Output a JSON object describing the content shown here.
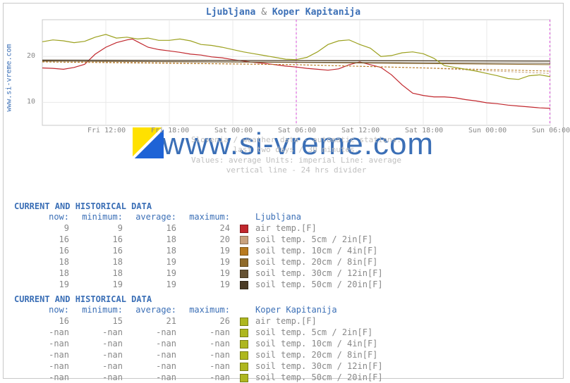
{
  "source_label": "www.si-vreme.com",
  "title_a": "Ljubljana",
  "title_amp": "&",
  "title_b": "Koper Kapitanija",
  "watermark": "www.si-vreme.com",
  "caption_lines": [
    "Slovenia / weather data - automatic stations.",
    "last two days / 30 minutes.",
    "Values: average  Units: imperial  Line: average",
    "vertical line - 24 hrs  divider"
  ],
  "chart": {
    "type": "line",
    "background_color": "#ffffff",
    "border_color": "#c8c8c8",
    "grid_color": "#e8e8e8",
    "gridline_y_values": [
      10,
      20
    ],
    "ylim": [
      5,
      28
    ],
    "y_ticks": [
      10,
      20
    ],
    "y_tick_color": "#888888",
    "y_tick_fontsize": 10,
    "x_domain_minutes": [
      0,
      2880
    ],
    "x_ticks_minutes": [
      360,
      720,
      1080,
      1440,
      1800,
      2160,
      2520,
      2880
    ],
    "x_tick_labels": [
      "Fri 12:00",
      "Fri 18:00",
      "Sat 00:00",
      "Sat 06:00",
      "Sat 12:00",
      "Sat 18:00",
      "Sun 00:00",
      "Sun 06:00"
    ],
    "x_tick_color": "#888888",
    "x_tick_fontsize": 10,
    "now_line_minute": 1440,
    "now_line_color": "#d84fd8",
    "now_line_dash": "3,3",
    "right_edge_line_color": "#d84fd8",
    "right_edge_line_dash": "3,3",
    "series": [
      {
        "name": "lj_air",
        "color": "#c1272d",
        "width": 1.2,
        "points": [
          [
            0,
            17.5
          ],
          [
            60,
            17.4
          ],
          [
            120,
            17.2
          ],
          [
            180,
            17.6
          ],
          [
            240,
            18.3
          ],
          [
            300,
            20.5
          ],
          [
            360,
            22.0
          ],
          [
            420,
            23.0
          ],
          [
            480,
            23.6
          ],
          [
            510,
            23.8
          ],
          [
            540,
            23.2
          ],
          [
            600,
            22.0
          ],
          [
            660,
            21.5
          ],
          [
            720,
            21.2
          ],
          [
            780,
            20.9
          ],
          [
            840,
            20.5
          ],
          [
            900,
            20.3
          ],
          [
            960,
            19.9
          ],
          [
            1020,
            19.7
          ],
          [
            1080,
            19.3
          ],
          [
            1140,
            19.0
          ],
          [
            1200,
            18.7
          ],
          [
            1260,
            18.5
          ],
          [
            1320,
            18.2
          ],
          [
            1380,
            17.9
          ],
          [
            1440,
            17.7
          ],
          [
            1500,
            17.4
          ],
          [
            1560,
            17.2
          ],
          [
            1620,
            17.0
          ],
          [
            1680,
            17.3
          ],
          [
            1740,
            18.2
          ],
          [
            1800,
            18.8
          ],
          [
            1860,
            18.2
          ],
          [
            1920,
            17.6
          ],
          [
            1980,
            16.0
          ],
          [
            2040,
            13.8
          ],
          [
            2100,
            12.0
          ],
          [
            2160,
            11.5
          ],
          [
            2220,
            11.2
          ],
          [
            2280,
            11.2
          ],
          [
            2340,
            11.0
          ],
          [
            2400,
            10.6
          ],
          [
            2460,
            10.3
          ],
          [
            2520,
            9.9
          ],
          [
            2580,
            9.7
          ],
          [
            2640,
            9.4
          ],
          [
            2700,
            9.2
          ],
          [
            2760,
            9.0
          ],
          [
            2820,
            8.8
          ],
          [
            2880,
            8.7
          ]
        ]
      },
      {
        "name": "lj_soil_5",
        "color": "#c9a27e",
        "width": 1,
        "dash": "3,2",
        "points": [
          [
            0,
            19.0
          ],
          [
            720,
            18.6
          ],
          [
            1440,
            18.2
          ],
          [
            2160,
            17.5
          ],
          [
            2880,
            16.3
          ]
        ]
      },
      {
        "name": "lj_soil_10",
        "color": "#b87a1f",
        "width": 1,
        "dash": "3,2",
        "points": [
          [
            0,
            18.8
          ],
          [
            1440,
            18.2
          ],
          [
            2880,
            16.8
          ]
        ]
      },
      {
        "name": "lj_soil_20",
        "color": "#8f6a2a",
        "width": 1,
        "points": [
          [
            0,
            19.0
          ],
          [
            1440,
            18.7
          ],
          [
            2880,
            18.2
          ]
        ]
      },
      {
        "name": "lj_soil_30",
        "color": "#665233",
        "width": 1,
        "points": [
          [
            0,
            19.0
          ],
          [
            2880,
            18.5
          ]
        ]
      },
      {
        "name": "lj_soil_50",
        "color": "#4a3a24",
        "width": 1.3,
        "points": [
          [
            0,
            19.2
          ],
          [
            2880,
            19.0
          ]
        ]
      },
      {
        "name": "kp_air",
        "color": "#9ca11f",
        "width": 1.2,
        "points": [
          [
            0,
            23.2
          ],
          [
            60,
            23.6
          ],
          [
            120,
            23.4
          ],
          [
            180,
            23.0
          ],
          [
            240,
            23.3
          ],
          [
            300,
            24.2
          ],
          [
            360,
            24.8
          ],
          [
            420,
            24.0
          ],
          [
            480,
            24.2
          ],
          [
            540,
            23.8
          ],
          [
            600,
            24.0
          ],
          [
            660,
            23.5
          ],
          [
            720,
            23.5
          ],
          [
            780,
            23.8
          ],
          [
            840,
            23.4
          ],
          [
            900,
            22.6
          ],
          [
            960,
            22.4
          ],
          [
            1020,
            22.0
          ],
          [
            1080,
            21.5
          ],
          [
            1140,
            21.0
          ],
          [
            1200,
            20.6
          ],
          [
            1260,
            20.2
          ],
          [
            1320,
            19.8
          ],
          [
            1380,
            19.4
          ],
          [
            1440,
            19.3
          ],
          [
            1500,
            19.8
          ],
          [
            1560,
            21.0
          ],
          [
            1620,
            22.6
          ],
          [
            1680,
            23.4
          ],
          [
            1740,
            23.6
          ],
          [
            1800,
            22.6
          ],
          [
            1860,
            21.8
          ],
          [
            1920,
            20.0
          ],
          [
            1980,
            20.2
          ],
          [
            2040,
            20.8
          ],
          [
            2100,
            21.0
          ],
          [
            2160,
            20.6
          ],
          [
            2220,
            19.6
          ],
          [
            2280,
            18.0
          ],
          [
            2340,
            17.6
          ],
          [
            2400,
            17.2
          ],
          [
            2460,
            16.8
          ],
          [
            2520,
            16.3
          ],
          [
            2580,
            15.8
          ],
          [
            2640,
            15.2
          ],
          [
            2700,
            15.0
          ],
          [
            2760,
            15.8
          ],
          [
            2820,
            16.0
          ],
          [
            2880,
            15.6
          ]
        ]
      }
    ],
    "wm_icon_colors": {
      "tl": "#ffe100",
      "br": "#1e63d6",
      "diag": "#ffffff"
    }
  },
  "tables": [
    {
      "title": "CURRENT AND HISTORICAL DATA",
      "location": "Ljubljana",
      "columns": [
        "now:",
        "minimum:",
        "average:",
        "maximum:"
      ],
      "rows": [
        {
          "values": [
            "9",
            "9",
            "16",
            "24"
          ],
          "swatch": "#c1272d",
          "label": "air temp.[F]"
        },
        {
          "values": [
            "16",
            "16",
            "18",
            "20"
          ],
          "swatch": "#c9a27e",
          "label": "soil temp. 5cm / 2in[F]"
        },
        {
          "values": [
            "16",
            "16",
            "18",
            "19"
          ],
          "swatch": "#b87a1f",
          "label": "soil temp. 10cm / 4in[F]"
        },
        {
          "values": [
            "18",
            "18",
            "19",
            "19"
          ],
          "swatch": "#8f6a2a",
          "label": "soil temp. 20cm / 8in[F]"
        },
        {
          "values": [
            "18",
            "18",
            "19",
            "19"
          ],
          "swatch": "#665233",
          "label": "soil temp. 30cm / 12in[F]"
        },
        {
          "values": [
            "19",
            "19",
            "19",
            "19"
          ],
          "swatch": "#4a3a24",
          "label": "soil temp. 50cm / 20in[F]"
        }
      ]
    },
    {
      "title": "CURRENT AND HISTORICAL DATA",
      "location": "Koper Kapitanija",
      "columns": [
        "now:",
        "minimum:",
        "average:",
        "maximum:"
      ],
      "rows": [
        {
          "values": [
            "16",
            "15",
            "21",
            "26"
          ],
          "swatch": "#aeb71f",
          "label": "air temp.[F]"
        },
        {
          "values": [
            "-nan",
            "-nan",
            "-nan",
            "-nan"
          ],
          "swatch": "#aeb71f",
          "label": "soil temp. 5cm / 2in[F]"
        },
        {
          "values": [
            "-nan",
            "-nan",
            "-nan",
            "-nan"
          ],
          "swatch": "#aeb71f",
          "label": "soil temp. 10cm / 4in[F]"
        },
        {
          "values": [
            "-nan",
            "-nan",
            "-nan",
            "-nan"
          ],
          "swatch": "#aeb71f",
          "label": "soil temp. 20cm / 8in[F]"
        },
        {
          "values": [
            "-nan",
            "-nan",
            "-nan",
            "-nan"
          ],
          "swatch": "#aeb71f",
          "label": "soil temp. 30cm / 12in[F]"
        },
        {
          "values": [
            "-nan",
            "-nan",
            "-nan",
            "-nan"
          ],
          "swatch": "#aeb71f",
          "label": "soil temp. 50cm / 20in[F]"
        }
      ]
    }
  ]
}
